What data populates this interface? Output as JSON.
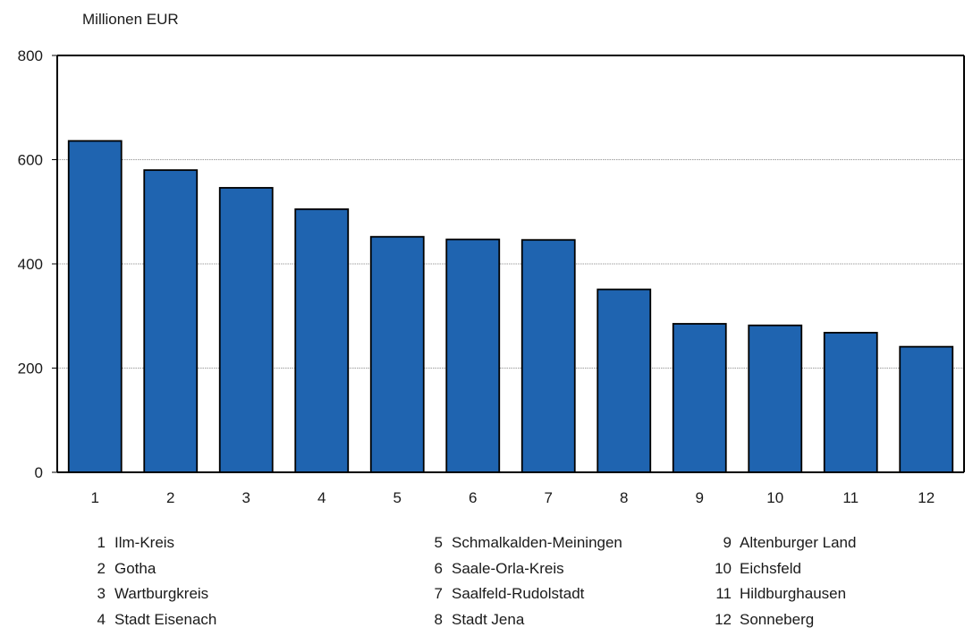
{
  "chart_data": {
    "type": "bar",
    "ylabel": "Millionen EUR",
    "categories": [
      "1",
      "2",
      "3",
      "4",
      "5",
      "6",
      "7",
      "8",
      "9",
      "10",
      "11",
      "12"
    ],
    "values": [
      636,
      580,
      546,
      505,
      452,
      447,
      446,
      351,
      285,
      282,
      268,
      241
    ],
    "ylim": [
      0,
      800
    ],
    "yticks": [
      "0",
      "200",
      "400",
      "600",
      "800"
    ],
    "grid": true,
    "bar_color": "#1f64b0"
  },
  "legend": [
    {
      "num": "1",
      "name": "Ilm-Kreis"
    },
    {
      "num": "2",
      "name": "Gotha"
    },
    {
      "num": "3",
      "name": "Wartburgkreis"
    },
    {
      "num": "4",
      "name": "Stadt Eisenach"
    },
    {
      "num": "5",
      "name": "Schmalkalden-Meiningen"
    },
    {
      "num": "6",
      "name": "Saale-Orla-Kreis"
    },
    {
      "num": "7",
      "name": "Saalfeld-Rudolstadt"
    },
    {
      "num": "8",
      "name": "Stadt Jena"
    },
    {
      "num": "9",
      "name": "Altenburger Land"
    },
    {
      "num": "10",
      "name": "Eichsfeld"
    },
    {
      "num": "11",
      "name": "Hildburghausen"
    },
    {
      "num": "12",
      "name": "Sonneberg"
    }
  ]
}
